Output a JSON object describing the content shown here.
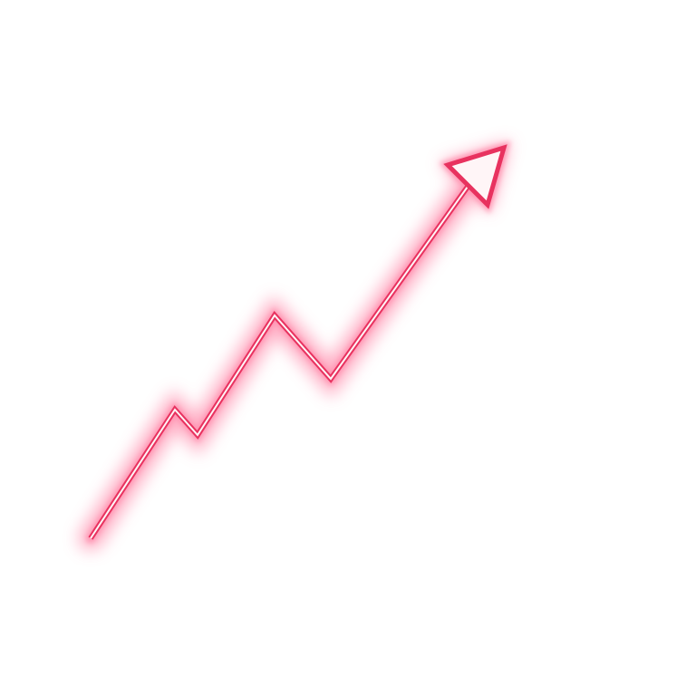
{
  "graphic": {
    "icon": "neon-trend-up-arrow-icon",
    "colors": {
      "background": "#ffffff",
      "glow": "#ff8fae",
      "stroke": "#e8325f",
      "core": "#fff5f7"
    }
  }
}
